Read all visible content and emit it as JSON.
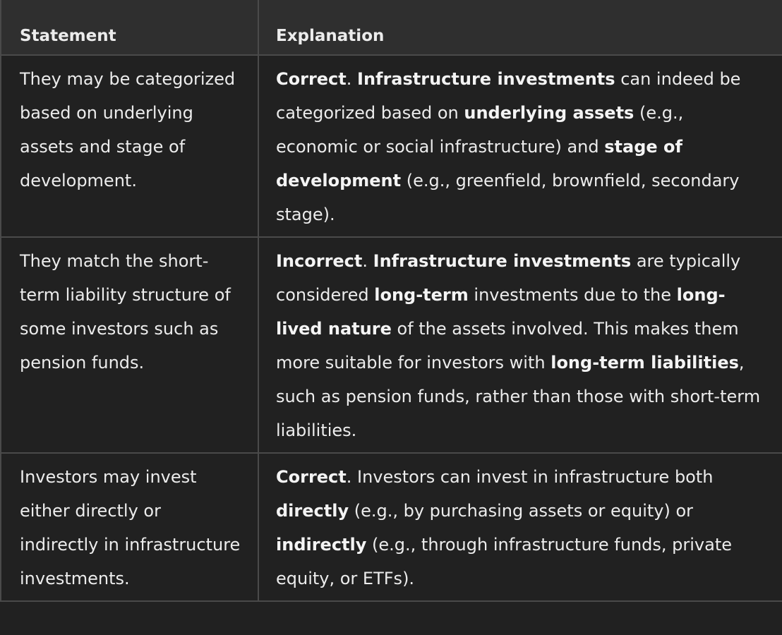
{
  "table": {
    "headers": [
      "Statement",
      "Explanation"
    ],
    "rows": [
      {
        "statement": "They may be categorized based on underlying assets and stage of development.",
        "explanation": [
          {
            "text": "Correct",
            "bold": true
          },
          {
            "text": ". ",
            "bold": false
          },
          {
            "text": "Infrastructure investments",
            "bold": true
          },
          {
            "text": " can indeed be categorized based on ",
            "bold": false
          },
          {
            "text": "underlying assets",
            "bold": true
          },
          {
            "text": " (e.g., economic or social infrastructure) and ",
            "bold": false
          },
          {
            "text": "stage of development",
            "bold": true
          },
          {
            "text": " (e.g., greenfield, brownfield, secondary stage).",
            "bold": false
          }
        ]
      },
      {
        "statement": "They match the short-term liability structure of some investors such as pension funds.",
        "explanation": [
          {
            "text": "Incorrect",
            "bold": true
          },
          {
            "text": ". ",
            "bold": false
          },
          {
            "text": "Infrastructure investments",
            "bold": true
          },
          {
            "text": " are typically considered ",
            "bold": false
          },
          {
            "text": "long-term",
            "bold": true
          },
          {
            "text": " investments due to the ",
            "bold": false
          },
          {
            "text": "long-lived nature",
            "bold": true
          },
          {
            "text": " of the assets involved. This makes them more suitable for investors with ",
            "bold": false
          },
          {
            "text": "long-term liabilities",
            "bold": true
          },
          {
            "text": ", such as pension funds, rather than those with short-term liabilities.",
            "bold": false
          }
        ]
      },
      {
        "statement": "Investors may invest either directly or indirectly in infrastructure investments.",
        "explanation": [
          {
            "text": "Correct",
            "bold": true
          },
          {
            "text": ". Investors can invest in infrastructure both ",
            "bold": false
          },
          {
            "text": "directly",
            "bold": true
          },
          {
            "text": " (e.g., by purchasing assets or equity) or ",
            "bold": false
          },
          {
            "text": "indirectly",
            "bold": true
          },
          {
            "text": " (e.g., through infrastructure funds, private equity, or ETFs).",
            "bold": false
          }
        ]
      }
    ]
  }
}
